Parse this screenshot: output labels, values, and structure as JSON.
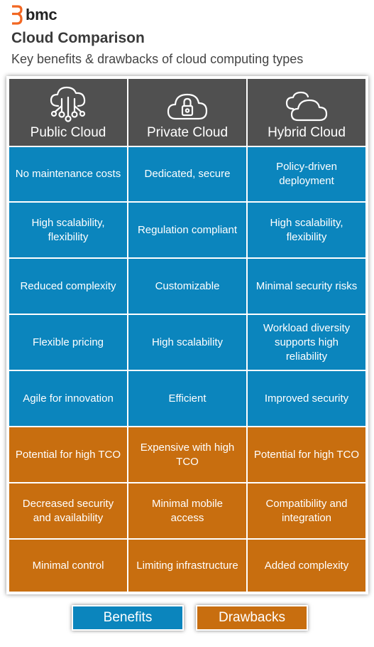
{
  "brand": {
    "name": "bmc"
  },
  "title": "Cloud Comparison",
  "subtitle": "Key benefits & drawbacks of cloud computing types",
  "columns": [
    {
      "label": "Public Cloud",
      "icon": "cloud-network-icon"
    },
    {
      "label": "Private Cloud",
      "icon": "cloud-lock-icon"
    },
    {
      "label": "Hybrid Cloud",
      "icon": "double-cloud-icon"
    }
  ],
  "benefits": [
    [
      "No maintenance costs",
      "Dedicated, secure",
      "Policy-driven deployment"
    ],
    [
      "High scalability, flexibility",
      "Regulation compliant",
      "High scalability, flexibility"
    ],
    [
      "Reduced complexity",
      "Customizable",
      "Minimal security risks"
    ],
    [
      "Flexible pricing",
      "High scalability",
      "Workload diversity supports high reliability"
    ],
    [
      "Agile for innovation",
      "Efficient",
      "Improved security"
    ]
  ],
  "drawbacks": [
    [
      "Potential for high TCO",
      "Expensive with high TCO",
      "Potential for high TCO"
    ],
    [
      "Decreased security and availability",
      "Minimal mobile access",
      "Compatibility and integration"
    ],
    [
      "Minimal control",
      "Limiting infrastructure",
      "Added complexity"
    ]
  ],
  "legend": {
    "benefits": "Benefits",
    "drawbacks": "Drawbacks"
  },
  "colors": {
    "header": "#505050",
    "benefit": "#0b85bd",
    "drawback": "#c86e0f",
    "brand": "#f26722"
  }
}
